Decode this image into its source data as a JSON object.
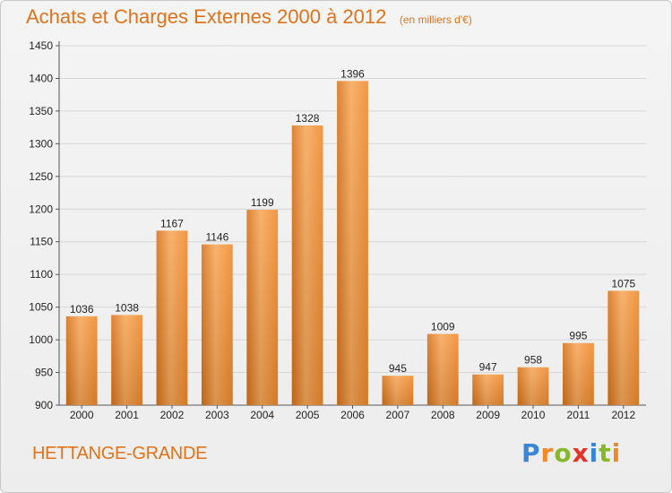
{
  "chart_data": {
    "type": "bar",
    "title": "Achats et Charges Externes 2000 à 2012",
    "subtitle": "(en milliers d'€)",
    "xlabel": "",
    "ylabel": "",
    "categories": [
      "2000",
      "2001",
      "2002",
      "2003",
      "2004",
      "2005",
      "2006",
      "2007",
      "2008",
      "2009",
      "2010",
      "2011",
      "2012"
    ],
    "values": [
      1036,
      1038,
      1167,
      1146,
      1199,
      1328,
      1396,
      945,
      1009,
      947,
      958,
      995,
      1075
    ],
    "ylim": [
      900,
      1450
    ],
    "yticks": [
      900,
      950,
      1000,
      1050,
      1100,
      1150,
      1200,
      1250,
      1300,
      1350,
      1400,
      1450
    ],
    "grid": true,
    "bar_color": "#f0892a",
    "bar_color_light": "#f7a85a",
    "bar_color_dark": "#d8731a"
  },
  "footer": {
    "location": "HETTANGE-GRANDE",
    "logo_letters": [
      {
        "ch": "P",
        "color": "#3a86d6"
      },
      {
        "ch": "r",
        "color": "#f0892a"
      },
      {
        "ch": "o",
        "color": "#86b82a"
      },
      {
        "ch": "x",
        "color": "#e2332a"
      },
      {
        "ch": "i",
        "color": "#3a86d6"
      },
      {
        "ch": "t",
        "color": "#86b82a"
      },
      {
        "ch": "i",
        "color": "#f0892a"
      }
    ]
  }
}
